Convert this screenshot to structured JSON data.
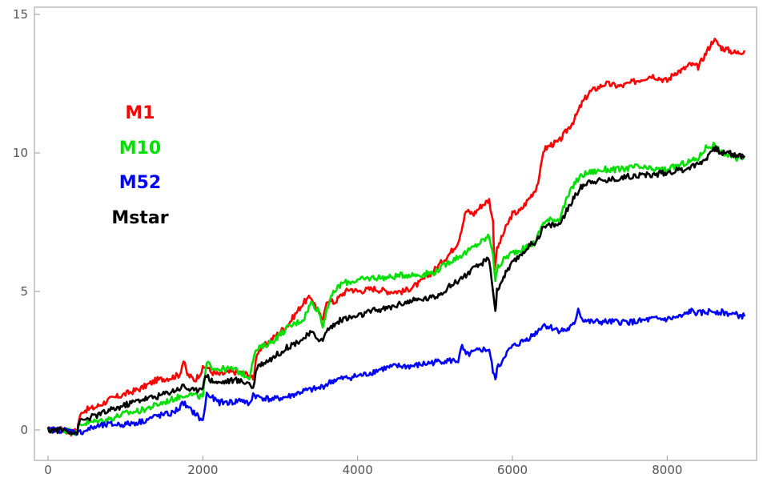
{
  "chart_data": {
    "type": "line",
    "title": "",
    "xlabel": "",
    "ylabel": "",
    "xlim": [
      0,
      9000
    ],
    "ylim": [
      -0.3,
      15
    ],
    "x_ticks": [
      0,
      2000,
      4000,
      6000,
      8000
    ],
    "x_tick_labels": [
      "0",
      "2000",
      "4000",
      "6000",
      "8000"
    ],
    "y_ticks": [
      0,
      5,
      10,
      15
    ],
    "y_tick_labels": [
      "0",
      "5",
      "10",
      "15"
    ],
    "grid": false,
    "legend_position": "upper-left, inside plot",
    "series": [
      {
        "name": "M1",
        "color": "#ff0000",
        "x": [
          0,
          200,
          300,
          380,
          400,
          450,
          600,
          800,
          1000,
          1200,
          1400,
          1600,
          1700,
          1750,
          1800,
          1900,
          2000,
          2050,
          2100,
          2200,
          2400,
          2600,
          2650,
          2700,
          2900,
          3100,
          3300,
          3400,
          3500,
          3550,
          3600,
          3700,
          3800,
          3900,
          4000,
          4200,
          4400,
          4600,
          4800,
          5000,
          5200,
          5300,
          5400,
          5500,
          5600,
          5700,
          5750,
          5770,
          5800,
          5900,
          6000,
          6100,
          6200,
          6300,
          6350,
          6400,
          6500,
          6600,
          6700,
          6800,
          6900,
          7000,
          7200,
          7400,
          7600,
          7800,
          8000,
          8100,
          8200,
          8300,
          8400,
          8500,
          8600,
          8700,
          8800,
          8900,
          9000
        ],
        "y": [
          0.0,
          0.0,
          -0.1,
          0.0,
          0.4,
          0.7,
          0.8,
          1.1,
          1.3,
          1.5,
          1.8,
          1.9,
          2.0,
          2.5,
          2.0,
          1.8,
          2.2,
          2.3,
          2.1,
          2.0,
          2.1,
          2.0,
          1.8,
          2.8,
          3.3,
          3.8,
          4.6,
          4.8,
          4.2,
          3.9,
          4.7,
          4.6,
          4.9,
          5.1,
          5.0,
          5.1,
          5.0,
          5.0,
          5.3,
          5.8,
          6.4,
          6.8,
          7.9,
          7.8,
          8.1,
          8.3,
          7.5,
          5.8,
          6.5,
          7.2,
          7.8,
          7.9,
          8.3,
          8.7,
          9.1,
          10.1,
          10.3,
          10.4,
          10.8,
          11.2,
          11.8,
          12.2,
          12.5,
          12.4,
          12.6,
          12.8,
          12.6,
          12.9,
          13.0,
          13.2,
          13.1,
          13.6,
          14.1,
          13.8,
          13.7,
          13.6,
          13.7
        ]
      },
      {
        "name": "M10",
        "color": "#00e000",
        "x": [
          0,
          200,
          380,
          400,
          600,
          800,
          1000,
          1200,
          1400,
          1600,
          1800,
          2000,
          2050,
          2100,
          2200,
          2400,
          2600,
          2650,
          2700,
          2900,
          3100,
          3300,
          3400,
          3500,
          3550,
          3600,
          3700,
          3800,
          4000,
          4200,
          4400,
          4600,
          4800,
          5000,
          5200,
          5400,
          5600,
          5700,
          5750,
          5780,
          5800,
          5900,
          6000,
          6200,
          6300,
          6400,
          6500,
          6600,
          6700,
          6800,
          6900,
          7000,
          7200,
          7400,
          7600,
          7800,
          8000,
          8200,
          8400,
          8500,
          8600,
          8700,
          8800,
          8900,
          9000
        ],
        "y": [
          0.0,
          0.0,
          -0.1,
          0.2,
          0.3,
          0.4,
          0.6,
          0.7,
          0.9,
          1.1,
          1.3,
          1.2,
          2.4,
          2.3,
          2.2,
          2.2,
          1.9,
          2.6,
          2.9,
          3.2,
          3.7,
          4.0,
          4.6,
          4.3,
          3.7,
          4.4,
          5.0,
          5.3,
          5.4,
          5.5,
          5.5,
          5.6,
          5.6,
          5.7,
          6.1,
          6.4,
          6.8,
          7.0,
          6.4,
          5.3,
          5.8,
          6.2,
          6.4,
          6.6,
          6.8,
          7.5,
          7.6,
          7.6,
          8.3,
          8.9,
          9.2,
          9.3,
          9.4,
          9.4,
          9.5,
          9.4,
          9.4,
          9.6,
          9.8,
          10.2,
          10.3,
          10.0,
          9.9,
          9.8,
          9.9
        ]
      },
      {
        "name": "M52",
        "color": "#0000ff",
        "x": [
          0,
          200,
          400,
          600,
          800,
          1000,
          1200,
          1400,
          1600,
          1700,
          1750,
          1800,
          1900,
          2000,
          2050,
          2100,
          2200,
          2400,
          2500,
          2600,
          2650,
          2700,
          2900,
          3100,
          3300,
          3500,
          3700,
          3900,
          4100,
          4300,
          4500,
          4700,
          4900,
          5100,
          5300,
          5350,
          5400,
          5500,
          5600,
          5700,
          5750,
          5780,
          5800,
          5850,
          5900,
          6000,
          6200,
          6300,
          6400,
          6500,
          6600,
          6700,
          6800,
          6850,
          6900,
          7000,
          7200,
          7400,
          7600,
          7800,
          8000,
          8200,
          8300,
          8400,
          8600,
          8800,
          9000
        ],
        "y": [
          0.0,
          0.0,
          -0.1,
          0.1,
          0.2,
          0.2,
          0.3,
          0.5,
          0.6,
          0.8,
          1.0,
          0.8,
          0.6,
          0.3,
          1.3,
          1.2,
          1.0,
          1.0,
          1.1,
          0.9,
          1.3,
          1.2,
          1.1,
          1.2,
          1.4,
          1.5,
          1.8,
          1.9,
          2.0,
          2.2,
          2.3,
          2.3,
          2.4,
          2.5,
          2.5,
          3.0,
          2.7,
          2.8,
          2.9,
          2.9,
          2.1,
          1.8,
          2.2,
          2.4,
          2.7,
          3.0,
          3.3,
          3.5,
          3.8,
          3.7,
          3.6,
          3.6,
          3.8,
          4.4,
          4.0,
          3.9,
          3.9,
          3.9,
          3.9,
          4.0,
          4.0,
          4.1,
          4.3,
          4.2,
          4.3,
          4.2,
          4.1
        ]
      },
      {
        "name": "Mstar",
        "color": "#000000",
        "x": [
          0,
          200,
          380,
          400,
          600,
          800,
          1000,
          1200,
          1400,
          1600,
          1700,
          1750,
          1800,
          1900,
          2000,
          2050,
          2100,
          2200,
          2400,
          2600,
          2650,
          2700,
          2900,
          3100,
          3300,
          3400,
          3500,
          3550,
          3600,
          3700,
          3800,
          4000,
          4200,
          4400,
          4600,
          4800,
          5000,
          5200,
          5400,
          5600,
          5700,
          5750,
          5780,
          5800,
          5900,
          6000,
          6200,
          6300,
          6400,
          6500,
          6600,
          6700,
          6800,
          6900,
          7000,
          7200,
          7400,
          7600,
          7800,
          8000,
          8200,
          8400,
          8500,
          8600,
          8700,
          8800,
          8900,
          9000
        ],
        "y": [
          0.0,
          0.0,
          -0.1,
          0.3,
          0.5,
          0.7,
          0.9,
          1.1,
          1.2,
          1.4,
          1.5,
          1.6,
          1.5,
          1.4,
          1.6,
          2.0,
          1.8,
          1.7,
          1.8,
          1.7,
          1.5,
          2.3,
          2.6,
          3.0,
          3.3,
          3.5,
          3.3,
          3.2,
          3.6,
          3.8,
          4.0,
          4.1,
          4.3,
          4.4,
          4.6,
          4.7,
          4.8,
          5.2,
          5.6,
          6.0,
          6.2,
          5.0,
          4.3,
          5.0,
          5.6,
          6.0,
          6.6,
          6.8,
          7.3,
          7.4,
          7.4,
          7.9,
          8.4,
          8.8,
          9.0,
          9.0,
          9.1,
          9.2,
          9.2,
          9.3,
          9.4,
          9.6,
          9.8,
          10.2,
          10.0,
          10.0,
          9.9,
          9.9
        ]
      }
    ]
  }
}
